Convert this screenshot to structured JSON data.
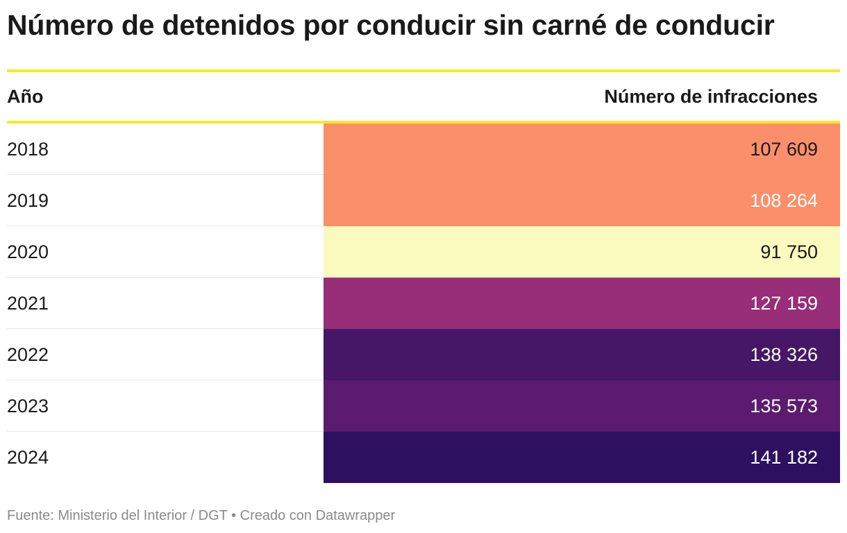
{
  "title": "Número de detenidos por conducir sin carné de conducir",
  "table": {
    "header": {
      "year": "Año",
      "value": "Número de infracciones"
    }
  },
  "chart_data": {
    "type": "table",
    "title": "Número de detenidos por conducir sin carné de conducir",
    "columns": [
      "Año",
      "Número de infracciones"
    ],
    "rows": [
      {
        "year": "2018",
        "value": 107609,
        "label": "107 609",
        "color": "#fc8f6b",
        "text_color": "#1a1a1a"
      },
      {
        "year": "2019",
        "value": 108264,
        "label": "108 264",
        "color": "#fc8f6b",
        "text_color": "#ffffff"
      },
      {
        "year": "2020",
        "value": 91750,
        "label": "91 750",
        "color": "#fafabe",
        "text_color": "#1a1a1a"
      },
      {
        "year": "2021",
        "value": 127159,
        "label": "127 159",
        "color": "#982d78",
        "text_color": "#ffffff"
      },
      {
        "year": "2022",
        "value": 138326,
        "label": "138 326",
        "color": "#451766",
        "text_color": "#ffffff"
      },
      {
        "year": "2023",
        "value": 135573,
        "label": "135 573",
        "color": "#5b1b6e",
        "text_color": "#ffffff"
      },
      {
        "year": "2024",
        "value": 141182,
        "label": "141 182",
        "color": "#2d1160",
        "text_color": "#ffffff"
      }
    ]
  },
  "colors": {
    "rule": "#fde725",
    "row_divider": "#e6e6e6",
    "source_text": "#8a8a8a"
  },
  "footer": {
    "source": "Fuente: Ministerio del Interior / DGT • Creado con Datawrapper"
  }
}
